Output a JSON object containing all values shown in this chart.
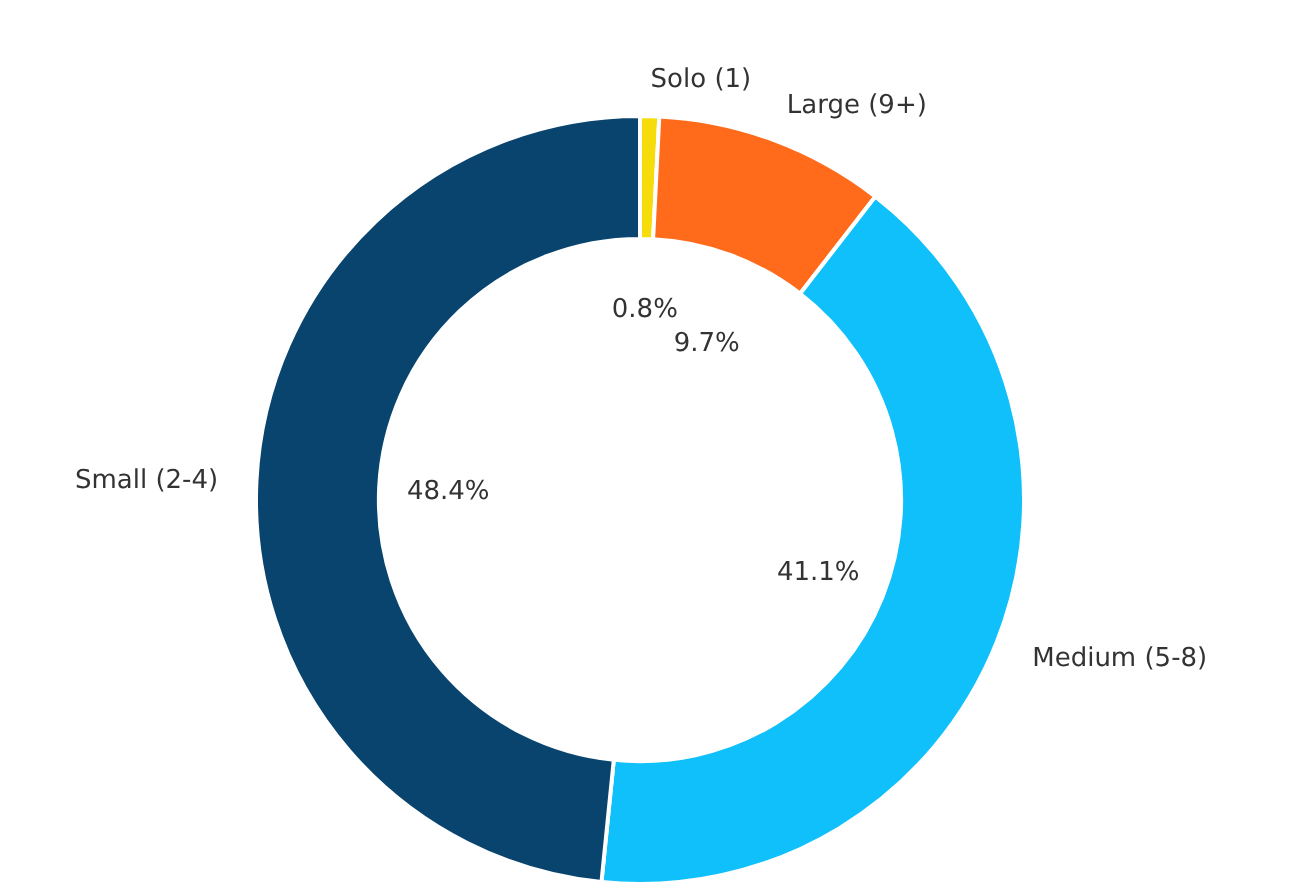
{
  "chart_data": {
    "type": "donut",
    "categories": [
      "Solo (1)",
      "Large (9+)",
      "Medium (5-8)",
      "Small (2-4)"
    ],
    "values": [
      0.8,
      9.7,
      41.1,
      48.4
    ],
    "value_labels": [
      "0.8%",
      "9.7%",
      "41.1%",
      "48.4%"
    ],
    "colors": [
      "#f7dc0c",
      "#ff6b1a",
      "#0fc0fa",
      "#08446e"
    ]
  }
}
